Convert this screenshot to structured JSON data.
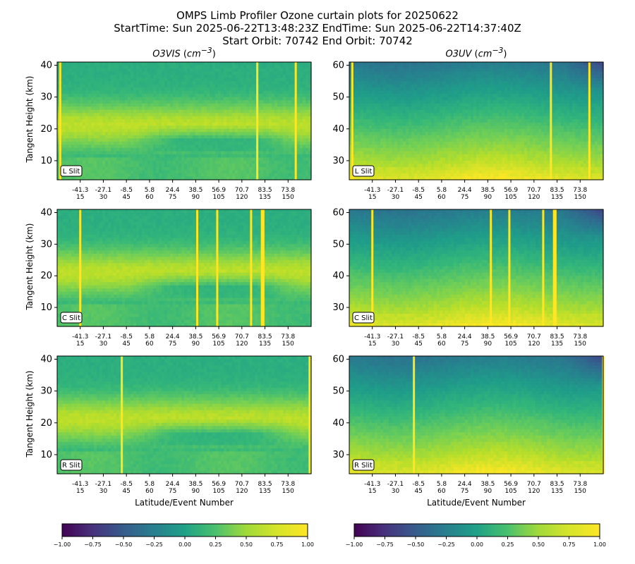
{
  "figure": {
    "title_lines": [
      "OMPS Limb Profiler Ozone curtain plots for 20250622",
      "StartTime: Sun 2025-06-22T13:48:23Z  EndTime: Sun 2025-06-22T14:37:40Z",
      "Start Orbit: 70742 End Orbit: 70742"
    ],
    "col_titles": [
      "O3VIS",
      "O3UV"
    ],
    "col_title_unit_base": "cm",
    "col_title_unit_exp": "−3",
    "ylabel": "Tangent Height (km)",
    "xlabel": "Latitude/Event Number"
  },
  "chart_data": {
    "type": "heatmap",
    "colormap": "viridis",
    "x_tick_latitudes": [
      "-41.3",
      "-27.1",
      "-8.5",
      "5.8",
      "24.4",
      "38.5",
      "56.9",
      "70.7",
      "83.5",
      "73.8"
    ],
    "x_tick_events": [
      "15",
      "30",
      "45",
      "60",
      "75",
      "90",
      "105",
      "120",
      "135",
      "150"
    ],
    "x_event_range": [
      0,
      165
    ],
    "colorbar": {
      "range": [
        -1.0,
        1.0
      ],
      "ticks": [
        "−1.00",
        "−0.75",
        "−0.50",
        "−0.25",
        "0.00",
        "0.25",
        "0.50",
        "0.75",
        "1.00"
      ]
    },
    "panels": [
      {
        "dataset": "O3VIS",
        "slit": "L Slit",
        "ylim": [
          4,
          41
        ],
        "yticks": [
          "10",
          "20",
          "30",
          "40"
        ],
        "bad_events": [
          2,
          130,
          155
        ]
      },
      {
        "dataset": "O3UV",
        "slit": "L Slit",
        "ylim": [
          24,
          61
        ],
        "yticks": [
          "30",
          "40",
          "50",
          "60"
        ],
        "bad_events": [
          2,
          131,
          156
        ]
      },
      {
        "dataset": "O3VIS",
        "slit": "C Slit",
        "ylim": [
          4,
          41
        ],
        "yticks": [
          "10",
          "20",
          "30",
          "40"
        ],
        "bad_events": [
          15,
          91,
          104,
          126,
          133,
          134
        ]
      },
      {
        "dataset": "O3UV",
        "slit": "C Slit",
        "ylim": [
          24,
          61
        ],
        "yticks": [
          "30",
          "40",
          "50",
          "60"
        ],
        "bad_events": [
          15,
          92,
          104,
          126,
          133,
          134
        ]
      },
      {
        "dataset": "O3VIS",
        "slit": "R Slit",
        "ylim": [
          4,
          41
        ],
        "yticks": [
          "10",
          "20",
          "30",
          "40"
        ],
        "bad_events": [
          42,
          164
        ]
      },
      {
        "dataset": "O3UV",
        "slit": "R Slit",
        "ylim": [
          24,
          61
        ],
        "yticks": [
          "30",
          "40",
          "50",
          "60"
        ],
        "bad_events": [
          42,
          165
        ]
      }
    ]
  }
}
